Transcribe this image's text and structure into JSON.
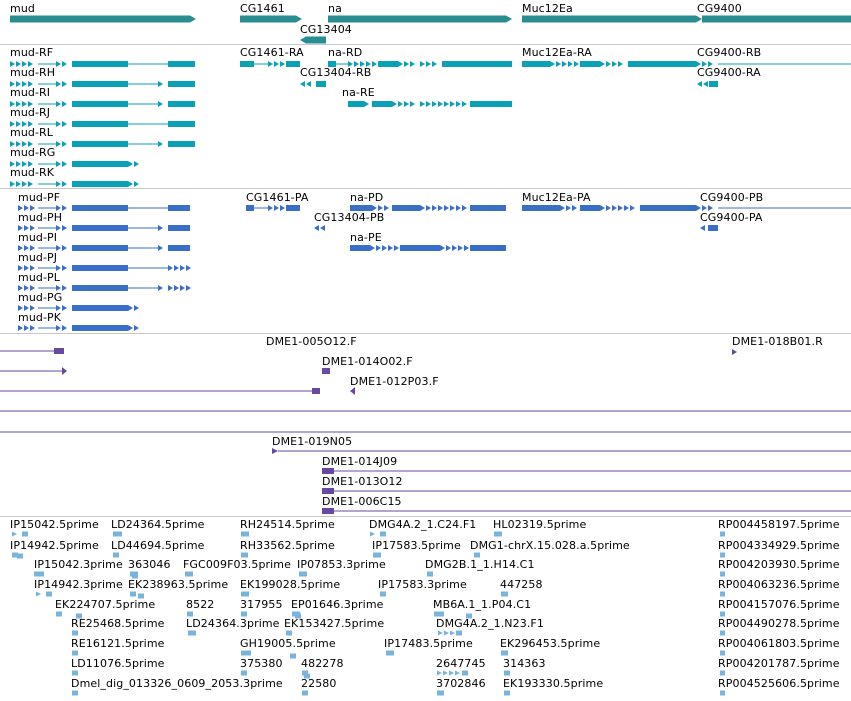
{
  "colors": {
    "gene": "#2a8d91",
    "transcript": "#0aa1b7",
    "protein": "#3a6fc8",
    "clone": "#6848a0",
    "est": "#78b4dc",
    "separator": "#c8c8c8"
  },
  "tracks": {
    "genes": {
      "labels": [
        "mud",
        "CG1461",
        "na",
        "CG13404",
        "Muc12Ea",
        "CG9400"
      ]
    },
    "transcripts": {
      "labels": [
        "mud-RF",
        "mud-RH",
        "mud-RI",
        "mud-RJ",
        "mud-RL",
        "mud-RG",
        "mud-RK",
        "CG1461-RA",
        "na-RD",
        "CG13404-RB",
        "na-RE",
        "Muc12Ea-RA",
        "CG9400-RB",
        "CG9400-RA"
      ]
    },
    "proteins": {
      "labels": [
        "mud-PF",
        "mud-PH",
        "mud-PI",
        "mud-PJ",
        "mud-PL",
        "mud-PG",
        "mud-PK",
        "CG1461-PA",
        "na-PD",
        "CG13404-PB",
        "na-PE",
        "Muc12Ea-PA",
        "CG9400-PB",
        "CG9400-PA"
      ]
    },
    "clones": {
      "labels": [
        "DME1-005O12.F",
        "DME1-018B01.R",
        "DME1-014O02.F",
        "DME1-012P03.F",
        "DME1-019N05",
        "DME1-014J09",
        "DME1-013O12",
        "DME1-006C15"
      ]
    },
    "ests": {
      "labels": [
        "IP15042.5prime",
        "LD24364.5prime",
        "RH24514.5prime",
        "DMG4A.2_1.C24.F1",
        "HL02319.5prime",
        "RP004458197.5prime",
        "IP14942.5prime",
        "LD44694.5prime",
        "RH33562.5prime",
        "IP17583.5prime",
        "DMG1-chrX.15.028.a.5prime",
        "RP004334929.5prime",
        "IP15042.3prime",
        "363046",
        "FGC009F03.5prime",
        "IP07853.3prime",
        "DMG2B.1_1.H14.C1",
        "RP004203930.5prime",
        "IP14942.3prime",
        "EK238963.5prime",
        "EK199028.5prime",
        "IP17583.3prime",
        "447258",
        "RP004063236.5prime",
        "EK224707.5prime",
        "8522",
        "317955",
        "EP01646.3prime",
        "MB6A.1_1.P04.C1",
        "RP004157076.5prime",
        "RE25468.5prime",
        "LD24364.3prime",
        "EK153427.5prime",
        "DMG4A.2_1.N23.F1",
        "RP004490278.5prime",
        "RE16121.5prime",
        "GH19005.5prime",
        "IP17483.5prime",
        "EK296453.5prime",
        "RP004061803.5prime",
        "LD11076.5prime",
        "375380",
        "482278",
        "2647745",
        "314363",
        "RP004201787.5prime",
        "Dmel_dig_013326_0609_2053.3prime",
        "22580",
        "3702846",
        "EK193330.5prime",
        "RP004525606.5prime"
      ]
    }
  }
}
